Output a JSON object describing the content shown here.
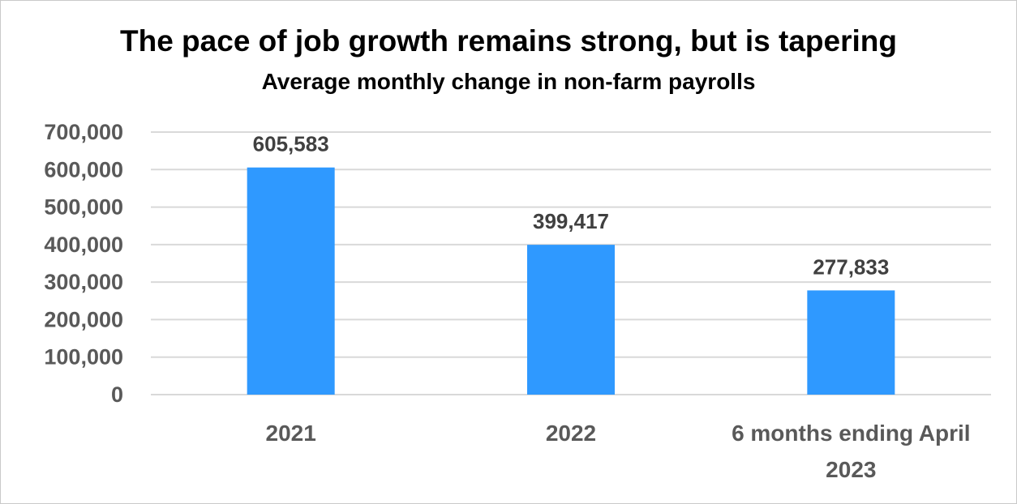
{
  "chart_data": {
    "type": "bar",
    "title": "The pace of job growth remains strong, but is tapering",
    "subtitle": "Average monthly change in non-farm payrolls",
    "categories": [
      [
        "2021"
      ],
      [
        "2022"
      ],
      [
        "6 months ending April",
        "2023"
      ]
    ],
    "values": [
      605583,
      399417,
      277833
    ],
    "data_labels": [
      "605,583",
      "399,417",
      "277,833"
    ],
    "ylim": [
      0,
      700000
    ],
    "y_ticks": [
      0,
      100000,
      200000,
      300000,
      400000,
      500000,
      600000,
      700000
    ],
    "y_tick_labels": [
      "0",
      "100,000",
      "200,000",
      "300,000",
      "400,000",
      "500,000",
      "600,000",
      "700,000"
    ],
    "grid": true,
    "legend": "none",
    "bar_color": "#2f99ff",
    "grid_color": "#d9d9d9"
  }
}
